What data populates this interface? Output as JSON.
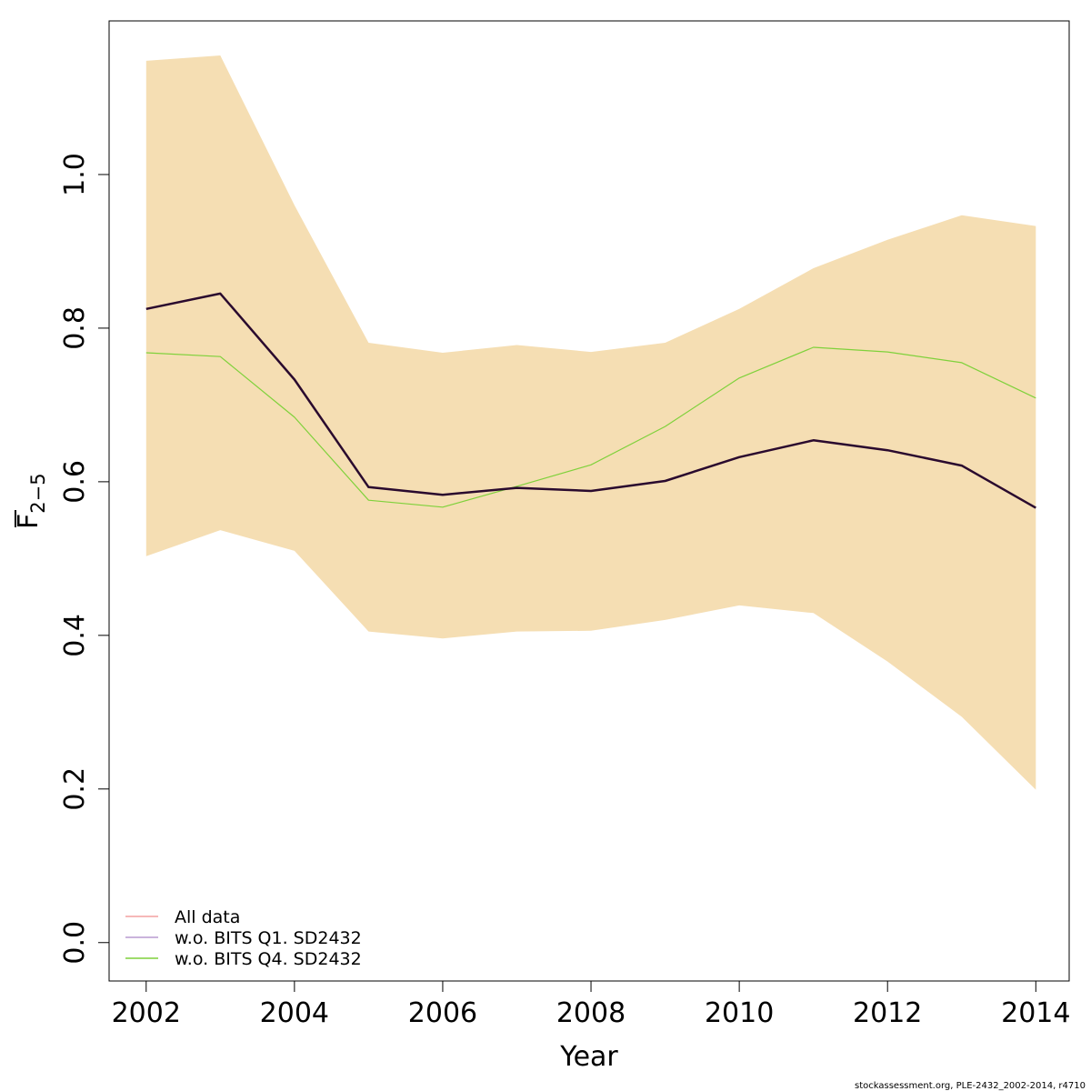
{
  "chart_data": {
    "type": "line",
    "xlabel": "Year",
    "ylabel": {
      "main": "F",
      "subscript": "2−5"
    },
    "xlim": [
      2001.5,
      2014.45
    ],
    "ylim": [
      -0.05,
      1.2
    ],
    "x_ticks": [
      2002,
      2004,
      2006,
      2008,
      2010,
      2012,
      2014
    ],
    "y_ticks": [
      0.0,
      0.2,
      0.4,
      0.6,
      0.8,
      1.0
    ],
    "x_tick_labels": [
      "2002",
      "2004",
      "2006",
      "2008",
      "2010",
      "2012",
      "2014"
    ],
    "y_tick_labels": [
      "0.0",
      "0.2",
      "0.4",
      "0.6",
      "0.8",
      "1.0"
    ],
    "x": [
      2002,
      2003,
      2004,
      2005,
      2006,
      2007,
      2008,
      2009,
      2010,
      2011,
      2012,
      2013,
      2014
    ],
    "band": {
      "color": "#f5deb3",
      "upper": [
        1.148,
        1.155,
        0.96,
        0.781,
        0.768,
        0.778,
        0.769,
        0.781,
        0.825,
        0.878,
        0.915,
        0.947,
        0.933
      ],
      "lower": [
        0.503,
        0.537,
        0.51,
        0.405,
        0.396,
        0.405,
        0.406,
        0.42,
        0.439,
        0.429,
        0.366,
        0.294,
        0.199
      ]
    },
    "series": [
      {
        "name": "All data",
        "color": "#2a0a2e",
        "legend_color": "#f4a0a0",
        "width": 2.5,
        "values": [
          0.825,
          0.845,
          0.733,
          0.593,
          0.583,
          0.592,
          0.588,
          0.601,
          0.632,
          0.654,
          0.641,
          0.621,
          0.566
        ]
      },
      {
        "name": "w.o. BITS Q1. SD2432",
        "color": "#b99bd1",
        "legend_color": "#b99bd1",
        "width": 1.2,
        "values": [
          0.825,
          0.845,
          0.733,
          0.593,
          0.583,
          0.592,
          0.588,
          0.601,
          0.632,
          0.654,
          0.641,
          0.621,
          0.566
        ]
      },
      {
        "name": "w.o. BITS Q4. SD2432",
        "color": "#7fd13b",
        "legend_color": "#7fd13b",
        "width": 1.2,
        "values": [
          0.768,
          0.763,
          0.684,
          0.576,
          0.567,
          0.594,
          0.622,
          0.672,
          0.735,
          0.775,
          0.769,
          0.755,
          0.709
        ]
      }
    ],
    "legend_position": "bottom-left",
    "grid": false
  },
  "footer": "stockassessment.org, PLE-2432_2002-2014, r4710"
}
